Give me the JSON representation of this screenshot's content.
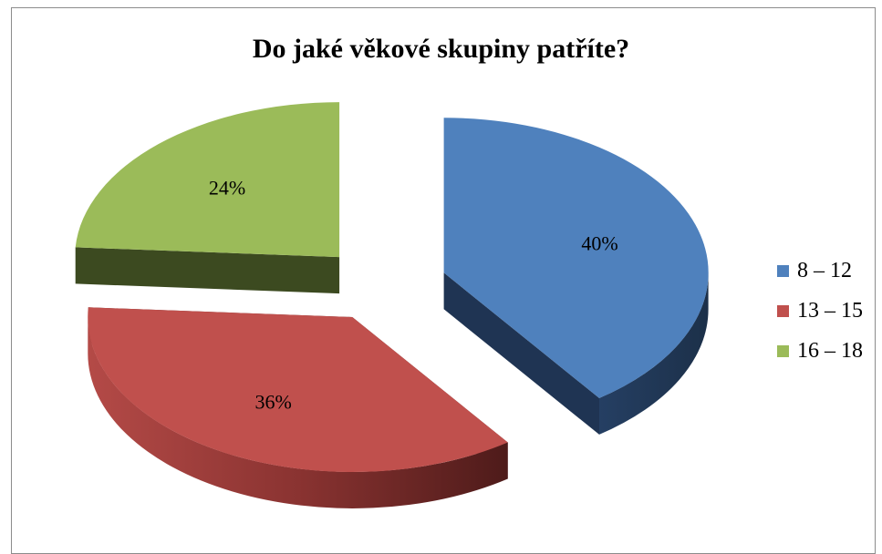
{
  "chart_data": {
    "type": "pie",
    "title": "Do jaké věkové skupiny patříte?",
    "categories": [
      "8 – 12",
      "13 – 15",
      "16 – 18"
    ],
    "values": [
      40,
      36,
      24
    ],
    "data_labels": [
      "40%",
      "36%",
      "24%"
    ],
    "colors": [
      "#4f81bd",
      "#c0504d",
      "#9bbb59"
    ],
    "style": "3d-exploded",
    "legend_position": "right"
  }
}
